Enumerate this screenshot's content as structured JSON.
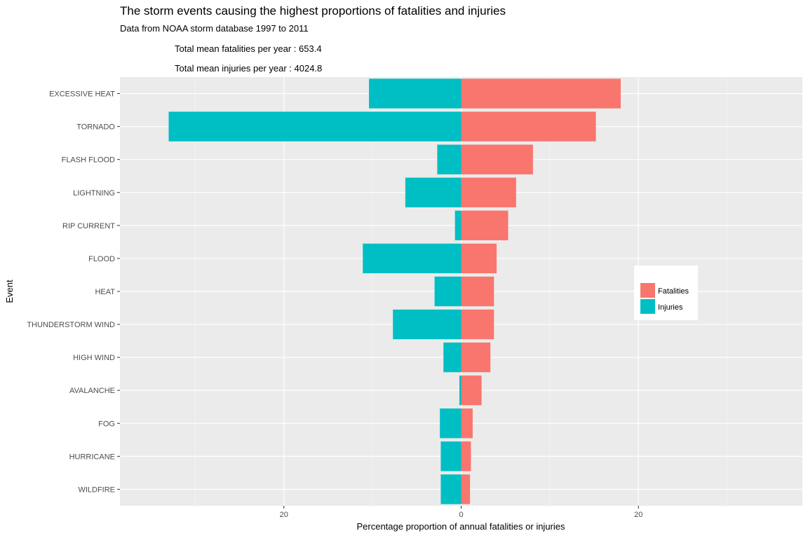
{
  "chart_data": {
    "type": "bar",
    "orientation": "horizontal",
    "title": "The storm events causing the highest proportions of fatalities and injuries",
    "subtitle": "Data from NOAA storm database 1997 to 2011",
    "annotations": [
      "Total mean fatalities per year : 653.4",
      "Total mean injuries per year : 4024.8"
    ],
    "xlabel": "Percentage proportion of annual fatalities or injuries",
    "ylabel": "Event",
    "xlim": [
      -38.5,
      38.5
    ],
    "x_ticks": [
      -20,
      0,
      20
    ],
    "x_tick_labels": [
      "20",
      "0",
      "20"
    ],
    "grid": true,
    "legend_position": "right",
    "categories": [
      "EXCESSIVE HEAT",
      "TORNADO",
      "FLASH FLOOD",
      "LIGHTNING",
      "RIP CURRENT",
      "FLOOD",
      "HEAT",
      "THUNDERSTORM WIND",
      "HIGH WIND",
      "AVALANCHE",
      "FOG",
      "HURRICANE",
      "WILDFIRE"
    ],
    "series": [
      {
        "name": "Fatalities",
        "color": "#F8766D",
        "values": [
          18.0,
          15.2,
          8.1,
          6.2,
          5.3,
          4.0,
          3.7,
          3.7,
          3.3,
          2.3,
          1.3,
          1.1,
          1.0
        ]
      },
      {
        "name": "Injuries",
        "color": "#00BFC4",
        "values": [
          10.4,
          33.0,
          2.7,
          6.3,
          0.7,
          11.1,
          3.0,
          7.7,
          2.0,
          0.2,
          2.4,
          2.3,
          2.3
        ]
      }
    ]
  }
}
